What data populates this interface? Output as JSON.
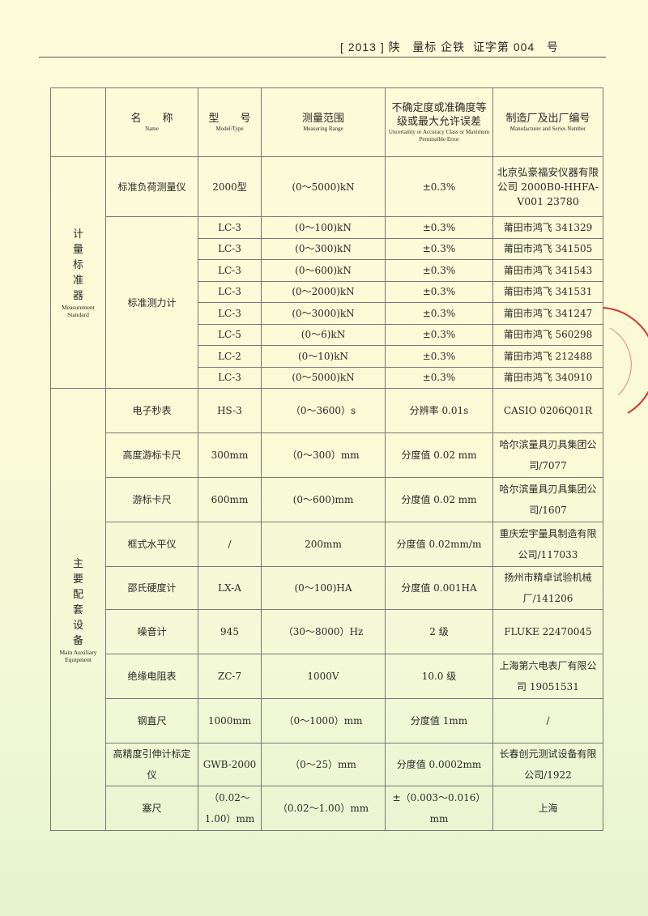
{
  "header": {
    "year": "[ 2013 ]",
    "province": "陕",
    "text1": "量标",
    "text2": "企铁",
    "text3": "证字第",
    "number": "004",
    "suffix": "号"
  },
  "columns": [
    {
      "cn": "名　　称",
      "en": "Name"
    },
    {
      "cn": "型　　号",
      "en": "Model/Type"
    },
    {
      "cn": "测量范围",
      "en": "Measuring Range"
    },
    {
      "cn": "不确定度或准确度等级或最大允许误差",
      "en": "Uncertainty or  Accuracy Class or  Maximum Permissible Error"
    },
    {
      "cn": "制造厂及出厂编号",
      "en": "Manufacturer and Series Number"
    }
  ],
  "groups": {
    "standard": {
      "cn": "计量标准器",
      "en": "Measurement Standard"
    },
    "equipment": {
      "cn": "主要配套设备",
      "en": "Main Auxiliary Equipment"
    }
  },
  "standard_first": {
    "name": "标准负荷测量仪",
    "model": "2000型",
    "range": "(0～5000)kN",
    "accuracy": "±0.3%",
    "maker": "北京弘豪福安仪器有限公司 2000B0-HHFA-V001 23780"
  },
  "standard_group_name": "标准测力计",
  "standard_rows": [
    {
      "model": "LC-3",
      "range": "(0～100)kN",
      "accuracy": "±0.3%",
      "maker": "莆田市鸿飞 341329"
    },
    {
      "model": "LC-3",
      "range": "(0～300)kN",
      "accuracy": "±0.3%",
      "maker": "莆田市鸿飞 341505"
    },
    {
      "model": "LC-3",
      "range": "(0～600)kN",
      "accuracy": "±0.3%",
      "maker": "莆田市鸿飞 341543"
    },
    {
      "model": "LC-3",
      "range": "(0～2000)kN",
      "accuracy": "±0.3%",
      "maker": "莆田市鸿飞 341531"
    },
    {
      "model": "LC-3",
      "range": "(0～3000)kN",
      "accuracy": "±0.3%",
      "maker": "莆田市鸿飞 341247"
    },
    {
      "model": "LC-5",
      "range": "(0～6)kN",
      "accuracy": "±0.3%",
      "maker": "莆田市鸿飞 560298"
    },
    {
      "model": "LC-2",
      "range": "(0～10)kN",
      "accuracy": "±0.3%",
      "maker": "莆田市鸿飞 212488"
    },
    {
      "model": "LC-3",
      "range": "(0～5000)kN",
      "accuracy": "±0.3%",
      "maker": "莆田市鸿飞 340910"
    }
  ],
  "equipment_rows": [
    {
      "name": "电子秒表",
      "model": "HS-3",
      "range": "（0～3600）s",
      "accuracy": "分辨率 0.01s",
      "maker": "CASIO 0206Q01R"
    },
    {
      "name": "高度游标卡尺",
      "model": "300mm",
      "range": "（0～300）mm",
      "accuracy": "分度值 0.02 mm",
      "maker": "哈尔滨量具刃具集团公司/7077"
    },
    {
      "name": "游标卡尺",
      "model": "600mm",
      "range": "(0～600)mm",
      "accuracy": "分度值 0.02 mm",
      "maker": "哈尔滨量具刃具集团公司/1607"
    },
    {
      "name": "框式水平仪",
      "model": "/",
      "range": "200mm",
      "accuracy": "分度值 0.02mm/m",
      "maker": "重庆宏宇量具制造有限公司/117033"
    },
    {
      "name": "邵氏硬度计",
      "model": "LX-A",
      "range": "(0～100)HA",
      "accuracy": "分度值 0.001HA",
      "maker": "扬州市精卓试验机械厂/141206"
    },
    {
      "name": "噪音计",
      "model": "945",
      "range": "（30～8000）Hz",
      "accuracy": "2 级",
      "maker": "FLUKE 22470045"
    },
    {
      "name": "绝缘电阻表",
      "model": "ZC-7",
      "range": "1000V",
      "accuracy": "10.0 级",
      "maker": "上海第六电表厂有限公司 19051531"
    },
    {
      "name": "钢直尺",
      "model": "1000mm",
      "range": "（0～1000）mm",
      "accuracy": "分度值 1mm",
      "maker": "/"
    },
    {
      "name": "高精度引伸计标定仪",
      "model": "GWB-2000",
      "range": "（0～25）mm",
      "accuracy": "分度值 0.0002mm",
      "maker": "长春创元测试设备有限公司/1922"
    },
    {
      "name": "塞尺",
      "model": "（0.02～1.00）mm",
      "range": "（0.02～1.00）mm",
      "accuracy": "±（0.003～0.016）mm",
      "maker": "上海"
    }
  ],
  "colors": {
    "stamp": "#d9362f",
    "rule": "#777777"
  }
}
